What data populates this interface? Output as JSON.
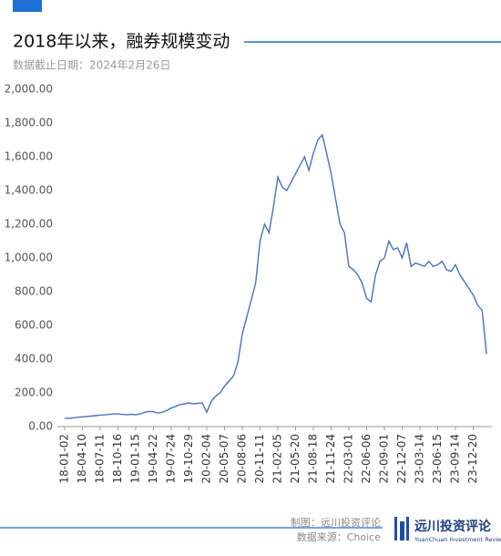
{
  "chart_data": {
    "type": "line",
    "title": "2018年以来，融券规模变动",
    "subtitle": "数据截止日期：2024年2月26日",
    "categories": [
      "18-01-02",
      null,
      null,
      null,
      "18-04-10",
      null,
      null,
      null,
      "18-07-11",
      null,
      null,
      null,
      "18-10-16",
      null,
      null,
      null,
      "19-01-15",
      null,
      null,
      null,
      "19-04-22",
      null,
      null,
      null,
      "19-07-24",
      null,
      null,
      null,
      "19-10-29",
      null,
      null,
      null,
      "20-02-04",
      null,
      null,
      null,
      "20-05-07",
      null,
      null,
      null,
      "20-08-06",
      null,
      null,
      null,
      "20-11-11",
      null,
      null,
      null,
      "21-02-05",
      null,
      null,
      null,
      "21-05-20",
      null,
      null,
      null,
      "21-08-18",
      null,
      null,
      null,
      "21-11-24",
      null,
      null,
      null,
      "22-03-01",
      null,
      null,
      null,
      "22-06-06",
      null,
      null,
      null,
      "22-09-01",
      null,
      null,
      null,
      "22-12-07",
      null,
      null,
      null,
      "23-03-14",
      null,
      null,
      null,
      "23-06-15",
      null,
      null,
      null,
      "23-09-14",
      null,
      null,
      null,
      "23-12-20",
      null,
      null,
      null
    ],
    "series": [
      {
        "color": "#4472c4",
        "values": [
          50,
          48,
          52,
          55,
          58,
          60,
          62,
          65,
          68,
          70,
          72,
          75,
          75,
          72,
          70,
          73,
          70,
          75,
          85,
          90,
          88,
          80,
          85,
          95,
          110,
          120,
          130,
          135,
          140,
          135,
          138,
          140,
          85,
          150,
          180,
          200,
          240,
          270,
          300,
          380,
          550,
          650,
          750,
          850,
          1100,
          1200,
          1150,
          1300,
          1480,
          1420,
          1400,
          1450,
          1500,
          1550,
          1600,
          1520,
          1620,
          1700,
          1730,
          1620,
          1500,
          1350,
          1200,
          1150,
          950,
          930,
          900,
          850,
          760,
          740,
          900,
          980,
          1000,
          1100,
          1050,
          1060,
          1000,
          1090,
          950,
          970,
          960,
          950,
          980,
          950,
          960,
          980,
          930,
          920,
          960,
          900,
          860,
          820,
          780,
          720,
          690,
          430
        ]
      }
    ],
    "ylim": [
      0,
      2000
    ],
    "yticks": [
      {
        "value": 0,
        "label": "0.00"
      },
      {
        "value": 200,
        "label": "200.00"
      },
      {
        "value": 400,
        "label": "400.00"
      },
      {
        "value": 600,
        "label": "600.00"
      },
      {
        "value": 800,
        "label": "800.00"
      },
      {
        "value": 1000,
        "label": "1,000.00"
      },
      {
        "value": 1200,
        "label": "1,200.00"
      },
      {
        "value": 1400,
        "label": "1,400.00"
      },
      {
        "value": 1600,
        "label": "1,600.00"
      },
      {
        "value": 1800,
        "label": "1,800.00"
      },
      {
        "value": 2000,
        "label": "2,000.00"
      }
    ],
    "grid": false
  },
  "footer": {
    "credit": "制图：远川投资评论",
    "source": "数据来源：Choice",
    "logo_cn": "远川投资评论",
    "logo_en": "YuanChuan Investment Review"
  }
}
